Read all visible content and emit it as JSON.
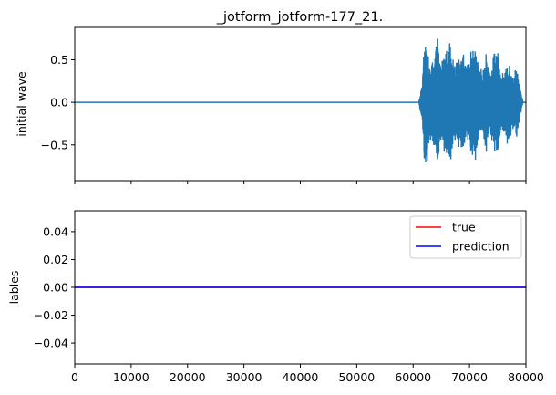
{
  "chart_data": [
    {
      "type": "line",
      "title": "_jotform_jotform-177_21.",
      "xlabel": "",
      "ylabel": "initial wave",
      "xlim": [
        0,
        80000
      ],
      "ylim": [
        -0.92,
        0.88
      ],
      "yticks": [
        -0.5,
        0.0,
        0.5
      ],
      "ytick_labels": [
        "−0.5",
        "0.0",
        "0.5"
      ],
      "xticks": [
        0,
        10000,
        20000,
        30000,
        40000,
        50000,
        60000,
        70000,
        80000
      ],
      "show_xtick_labels": false,
      "grid": false,
      "color": "#1f77b4",
      "series": [
        {
          "silent_until": 61000,
          "end": 79500,
          "envelope": [
            [
              61000,
              0.0
            ],
            [
              61600,
              0.25
            ],
            [
              62000,
              0.8
            ],
            [
              62500,
              0.75
            ],
            [
              63000,
              0.45
            ],
            [
              63600,
              0.55
            ],
            [
              64300,
              0.8
            ],
            [
              65000,
              0.5
            ],
            [
              65700,
              0.65
            ],
            [
              66500,
              0.8
            ],
            [
              67200,
              0.45
            ],
            [
              68000,
              0.55
            ],
            [
              68800,
              0.7
            ],
            [
              69500,
              0.45
            ],
            [
              70200,
              0.6
            ],
            [
              71000,
              0.75
            ],
            [
              71600,
              0.5
            ],
            [
              72300,
              0.35
            ],
            [
              73000,
              0.65
            ],
            [
              73600,
              0.35
            ],
            [
              74300,
              0.6
            ],
            [
              75000,
              0.7
            ],
            [
              75600,
              0.3
            ],
            [
              76300,
              0.45
            ],
            [
              77000,
              0.55
            ],
            [
              77600,
              0.3
            ],
            [
              78300,
              0.45
            ],
            [
              79000,
              0.2
            ],
            [
              79500,
              0.0
            ]
          ]
        }
      ]
    },
    {
      "type": "line",
      "title": "",
      "xlabel": "",
      "ylabel": "lables",
      "xlim": [
        0,
        80000
      ],
      "ylim": [
        -0.055,
        0.055
      ],
      "yticks": [
        -0.04,
        -0.02,
        0.0,
        0.02,
        0.04
      ],
      "ytick_labels": [
        "−0.04",
        "−0.02",
        "0.00",
        "0.02",
        "0.04"
      ],
      "xticks": [
        0,
        10000,
        20000,
        30000,
        40000,
        50000,
        60000,
        70000,
        80000
      ],
      "xtick_labels": [
        "0",
        "10000",
        "20000",
        "30000",
        "40000",
        "50000",
        "60000",
        "70000",
        "80000"
      ],
      "grid": false,
      "legend": "top-right",
      "series": [
        {
          "name": "true",
          "color": "#ff0000",
          "x": [
            0,
            80000
          ],
          "y": [
            0,
            0
          ]
        },
        {
          "name": "prediction",
          "color": "#0000ff",
          "x": [
            0,
            80000
          ],
          "y": [
            0,
            0
          ]
        }
      ]
    }
  ]
}
